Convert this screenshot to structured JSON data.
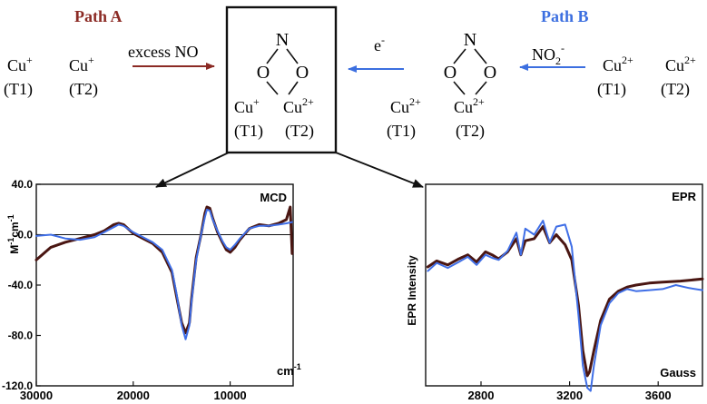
{
  "scheme": {
    "path_a": {
      "title": "Path A",
      "reagent": "excess NO",
      "left_pair": [
        {
          "ion": "Cu",
          "charge": "+",
          "site": "(T1)"
        },
        {
          "ion": "Cu",
          "charge": "+",
          "site": "(T2)"
        }
      ]
    },
    "path_b": {
      "title": "Path B",
      "reagent_base": "NO",
      "reagent_sub": "2",
      "reagent_sup": "-",
      "arrow_label_base": "e",
      "arrow_label_sup": "-",
      "right_pair": [
        {
          "ion": "Cu",
          "charge": "2+",
          "site": "(T1)"
        },
        {
          "ion": "Cu",
          "charge": "2+",
          "site": "(T2)"
        }
      ]
    },
    "center_complex": {
      "n_label": "N",
      "o_left": "O",
      "o_right": "O",
      "cu_left": {
        "ion": "Cu",
        "charge": "+",
        "site": "(T1)"
      },
      "cu_right": {
        "ion": "Cu",
        "charge": "2+",
        "site": "(T2)"
      }
    },
    "right_complex": {
      "n_label": "N",
      "o_left": "O",
      "o_right": "O",
      "cu_left": {
        "ion": "Cu",
        "charge": "2+",
        "site": "(T1)"
      },
      "cu_right": {
        "ion": "Cu",
        "charge": "2+",
        "site": "(T2)"
      }
    }
  },
  "colors": {
    "path_a": "#8b2a24",
    "path_b": "#3c6fe0",
    "trace_dark": "#4a1612",
    "trace_blue": "#3f6ee6"
  },
  "chart_data": [
    {
      "type": "line",
      "title": "MCD",
      "xlabel_unit": "cm-1",
      "ylabel_base": "M",
      "ylabel_sup1": "-1",
      "ylabel_mid": "cm",
      "ylabel_sup2": "-1",
      "xlim": [
        30000,
        3500
      ],
      "ylim": [
        -120,
        40
      ],
      "xticks": [
        30000,
        20000,
        10000
      ],
      "yticks": [
        40,
        0,
        -40,
        -80,
        -120
      ],
      "ytick_labels": [
        "40.0",
        "0.0",
        "-40.0",
        "-80.0",
        "-120.0"
      ],
      "zero_line": true,
      "series": [
        {
          "color_key": "trace_dark",
          "x": [
            30000,
            28500,
            27000,
            25500,
            24000,
            23000,
            22000,
            21500,
            21000,
            20000,
            19000,
            18000,
            17000,
            16000,
            15500,
            15000,
            14600,
            14200,
            14000,
            13500,
            13000,
            12600,
            12400,
            12100,
            11800,
            11300,
            10800,
            10400,
            10000,
            9500,
            9000,
            8000,
            7000,
            6000,
            5000,
            4200,
            3800,
            3600
          ],
          "y": [
            -20,
            -10,
            -6,
            -3,
            0,
            3,
            8,
            9,
            8,
            1,
            -3,
            -7,
            -14,
            -30,
            -50,
            -70,
            -78,
            -70,
            -52,
            -18,
            0,
            17,
            22,
            21,
            13,
            2,
            -6,
            -12,
            -14,
            -10,
            -4,
            5,
            8,
            7,
            9,
            12,
            22,
            -15
          ]
        },
        {
          "color_key": "trace_blue",
          "x": [
            30000,
            28500,
            27000,
            25500,
            24000,
            23000,
            22000,
            21500,
            21000,
            20000,
            19000,
            18000,
            17000,
            16000,
            15500,
            15000,
            14600,
            14200,
            14000,
            13500,
            13000,
            12600,
            12400,
            12100,
            11800,
            11300,
            10800,
            10400,
            10000,
            9500,
            9000,
            8000,
            7000,
            6000,
            5000,
            4200,
            3600
          ],
          "y": [
            -1,
            0,
            -3,
            -4,
            -2,
            2,
            6,
            8,
            7,
            2,
            -2,
            -6,
            -12,
            -28,
            -48,
            -72,
            -83,
            -72,
            -54,
            -20,
            0,
            14,
            20,
            19,
            12,
            3,
            -5,
            -10,
            -12,
            -8,
            -3,
            5,
            7,
            7,
            8,
            9,
            10
          ]
        }
      ]
    },
    {
      "type": "line",
      "title": "EPR",
      "xlabel_unit": "Gauss",
      "ylabel": "EPR Intensity",
      "xlim": [
        2550,
        3800
      ],
      "ylim": [
        -1,
        1
      ],
      "xticks": [
        2800,
        3200,
        3600
      ],
      "series": [
        {
          "color_key": "trace_dark",
          "x": [
            2560,
            2600,
            2650,
            2700,
            2740,
            2780,
            2820,
            2850,
            2880,
            2920,
            2960,
            2980,
            3000,
            3040,
            3080,
            3110,
            3140,
            3180,
            3210,
            3240,
            3260,
            3280,
            3290,
            3310,
            3340,
            3380,
            3420,
            3460,
            3500,
            3560,
            3620,
            3700,
            3800
          ],
          "y": [
            0.18,
            0.24,
            0.2,
            0.26,
            0.3,
            0.23,
            0.33,
            0.3,
            0.26,
            0.33,
            0.46,
            0.3,
            0.44,
            0.46,
            0.58,
            0.42,
            0.5,
            0.4,
            0.25,
            -0.2,
            -0.65,
            -0.9,
            -0.86,
            -0.65,
            -0.35,
            -0.14,
            -0.06,
            -0.02,
            0.0,
            0.02,
            0.03,
            0.04,
            0.06
          ]
        },
        {
          "color_key": "trace_blue",
          "x": [
            2560,
            2600,
            2650,
            2700,
            2740,
            2780,
            2820,
            2850,
            2880,
            2920,
            2960,
            2980,
            3000,
            3040,
            3080,
            3110,
            3140,
            3180,
            3210,
            3240,
            3260,
            3280,
            3295,
            3310,
            3340,
            3380,
            3420,
            3460,
            3500,
            3560,
            3620,
            3680,
            3740,
            3800
          ],
          "y": [
            0.14,
            0.22,
            0.17,
            0.23,
            0.28,
            0.2,
            0.3,
            0.27,
            0.25,
            0.34,
            0.52,
            0.3,
            0.56,
            0.5,
            0.64,
            0.42,
            0.58,
            0.6,
            0.38,
            -0.3,
            -0.8,
            -1.02,
            -1.05,
            -0.8,
            -0.4,
            -0.18,
            -0.08,
            -0.04,
            -0.06,
            -0.05,
            -0.04,
            0.0,
            -0.03,
            -0.05
          ]
        }
      ]
    }
  ]
}
